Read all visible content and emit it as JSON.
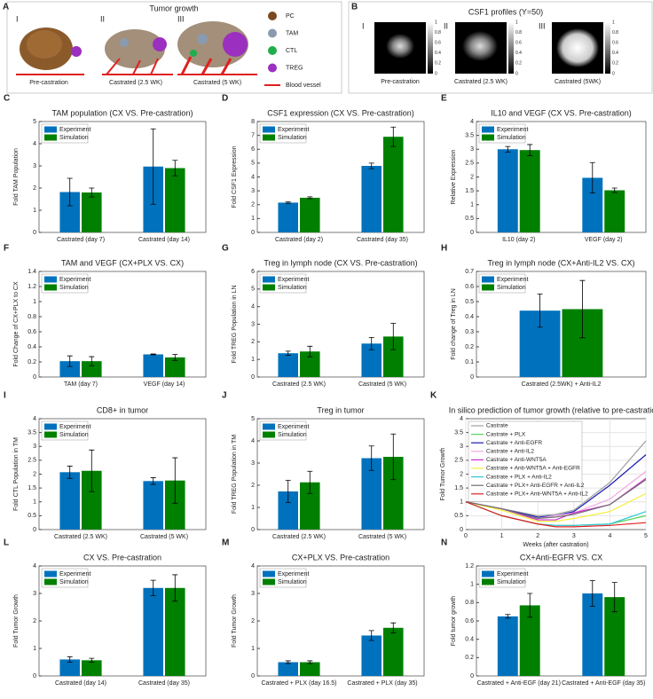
{
  "panel_a": {
    "letter": "A",
    "title": "Tumor growth",
    "image_labels": [
      "I",
      "II",
      "III"
    ],
    "captions": [
      "Pre-castration",
      "Castrated (2.5 WK)",
      "Castrated (5 WK)"
    ],
    "legend": [
      {
        "name": "PC",
        "color": "#7a4a1e"
      },
      {
        "name": "TAM",
        "color": "#8a9bb0"
      },
      {
        "name": "CTL",
        "color": "#1fae4b"
      },
      {
        "name": "TREG",
        "color": "#9b2fc0"
      },
      {
        "name": "Blood vessel",
        "color": "#e02020"
      }
    ]
  },
  "panel_b": {
    "letter": "B",
    "title": "CSF1 profiles (Y=50)",
    "image_labels": [
      "I",
      "II",
      "III"
    ],
    "captions": [
      "Pre-castration",
      "Castrated (2.5 WK)",
      "Castrated (5WK)"
    ],
    "colorbar_ticks": [
      0,
      0.2,
      0.4,
      0.6,
      0.8,
      1
    ]
  },
  "chart_data": [
    {
      "type": "bar",
      "letter": "C",
      "title": "TAM population (CX VS. Pre-castration)",
      "ylabel": "Fold TAM Population",
      "categories": [
        "Castrated (day 7)",
        "Castrated (day 14)"
      ],
      "series": [
        {
          "name": "Experiment",
          "color": "#0072bd",
          "values": [
            1.82,
            2.97
          ],
          "errors": [
            0.62,
            1.7
          ]
        },
        {
          "name": "Simulation",
          "color": "#008000",
          "values": [
            1.8,
            2.9
          ],
          "errors": [
            0.2,
            0.35
          ]
        }
      ],
      "ylim": [
        0,
        5
      ],
      "yticks": [
        0,
        1,
        2,
        3,
        4,
        5
      ]
    },
    {
      "type": "bar",
      "letter": "D",
      "title": "CSF1 expression (CX VS. Pre-castration)",
      "ylabel": "Fold CSF1 Expression",
      "categories": [
        "Castrated (day 2)",
        "Castrated (day 35)"
      ],
      "series": [
        {
          "name": "Experiment",
          "color": "#0072bd",
          "values": [
            2.15,
            4.8
          ],
          "errors": [
            0.05,
            0.2
          ]
        },
        {
          "name": "Simulation",
          "color": "#008000",
          "values": [
            2.5,
            6.9
          ],
          "errors": [
            0.07,
            0.7
          ]
        }
      ],
      "ylim": [
        0,
        8
      ],
      "yticks": [
        0,
        1,
        2,
        3,
        4,
        5,
        6,
        7,
        8
      ]
    },
    {
      "type": "bar",
      "letter": "E",
      "title": "IL10 and VEGF (CX VS. Pre-castration)",
      "ylabel": "Relative Expression",
      "categories": [
        "IL10 (day 2)",
        "VEGF (day 2)"
      ],
      "series": [
        {
          "name": "Experiment",
          "color": "#0072bd",
          "values": [
            3.0,
            1.97
          ],
          "errors": [
            0.1,
            0.55
          ]
        },
        {
          "name": "Simulation",
          "color": "#008000",
          "values": [
            2.97,
            1.52
          ],
          "errors": [
            0.2,
            0.08
          ]
        }
      ],
      "ylim": [
        0,
        4
      ],
      "yticks": [
        0,
        0.5,
        1,
        1.5,
        2,
        2.5,
        3,
        3.5,
        4
      ]
    },
    {
      "type": "bar",
      "letter": "F",
      "title": "TAM and VEGF (CX+PLX VS. CX)",
      "ylabel": "Fold Change of CX+PLX to CX",
      "categories": [
        "TAM (day 7)",
        "VEGF (day 14)"
      ],
      "series": [
        {
          "name": "Experiment",
          "color": "#0072bd",
          "values": [
            0.21,
            0.3
          ],
          "errors": [
            0.07,
            0.005
          ]
        },
        {
          "name": "Simulation",
          "color": "#008000",
          "values": [
            0.21,
            0.26
          ],
          "errors": [
            0.06,
            0.04
          ]
        }
      ],
      "ylim": [
        0,
        1.4
      ],
      "yticks": [
        0,
        0.2,
        0.4,
        0.6,
        0.8,
        1,
        1.2,
        1.4
      ]
    },
    {
      "type": "bar",
      "letter": "G",
      "title": "Treg in lymph node (CX VS. Pre-castration)",
      "ylabel": "Fold TREG Population in LN",
      "categories": [
        "Castrated (2.5 WK)",
        "Castrated (5 WK)"
      ],
      "series": [
        {
          "name": "Experiment",
          "color": "#0072bd",
          "values": [
            1.35,
            1.9
          ],
          "errors": [
            0.12,
            0.35
          ]
        },
        {
          "name": "Simulation",
          "color": "#008000",
          "values": [
            1.45,
            2.3
          ],
          "errors": [
            0.3,
            0.75
          ]
        }
      ],
      "ylim": [
        0,
        6
      ],
      "yticks": [
        0,
        1,
        2,
        3,
        4,
        5,
        6
      ]
    },
    {
      "type": "bar",
      "letter": "H",
      "title": "Treg in lymph node (CX+Anti-IL2 VS. CX)",
      "ylabel": "Fold change of Treg in LN",
      "categories": [
        "Castrated (2.5WK) + Anti-IL2"
      ],
      "series": [
        {
          "name": "Experiment",
          "color": "#0072bd",
          "values": [
            0.44
          ],
          "errors": [
            0.11
          ]
        },
        {
          "name": "Simulation",
          "color": "#008000",
          "values": [
            0.45
          ],
          "errors": [
            0.19
          ]
        }
      ],
      "ylim": [
        0,
        0.7
      ],
      "yticks": [
        0,
        0.1,
        0.2,
        0.3,
        0.4,
        0.5,
        0.6,
        0.7
      ]
    },
    {
      "type": "bar",
      "letter": "I",
      "title": "CD8+ in tumor",
      "ylabel": "Fold CTL Population in TM",
      "categories": [
        "Castrated (2.5 WK)",
        "Castrated (5 WK)"
      ],
      "series": [
        {
          "name": "Experiment",
          "color": "#0072bd",
          "values": [
            2.07,
            1.75
          ],
          "errors": [
            0.22,
            0.12
          ]
        },
        {
          "name": "Simulation",
          "color": "#008000",
          "values": [
            2.12,
            1.77
          ],
          "errors": [
            0.75,
            0.82
          ]
        }
      ],
      "ylim": [
        0,
        4
      ],
      "yticks": [
        0,
        0.5,
        1,
        1.5,
        2,
        2.5,
        3,
        3.5,
        4
      ]
    },
    {
      "type": "bar",
      "letter": "J",
      "title": "Treg in tumor",
      "ylabel": "Fold TREG Population in TM",
      "categories": [
        "Castrated (2.5 WK)",
        "Castrated (5 WK)"
      ],
      "series": [
        {
          "name": "Experiment",
          "color": "#0072bd",
          "values": [
            1.72,
            3.22
          ],
          "errors": [
            0.5,
            0.55
          ]
        },
        {
          "name": "Simulation",
          "color": "#008000",
          "values": [
            2.13,
            3.28
          ],
          "errors": [
            0.5,
            1.03
          ]
        }
      ],
      "ylim": [
        0,
        5
      ],
      "yticks": [
        0,
        1,
        2,
        3,
        4,
        5
      ]
    },
    {
      "type": "line",
      "letter": "K",
      "title": "In silico prediction of tumor growth (relative to pre-castration)",
      "xlabel": "Weeks (after castration)",
      "ylabel": "Fold Tumor Growth",
      "x": [
        0,
        1,
        2,
        2.5,
        3,
        4,
        5
      ],
      "series": [
        {
          "name": "Castrate",
          "color": "#a0a0a0",
          "values": [
            1,
            0.75,
            0.5,
            0.55,
            0.7,
            1.7,
            3.2
          ]
        },
        {
          "name": "Castrate + PLX",
          "color": "#5ad45a",
          "values": [
            1,
            0.5,
            0.2,
            0.15,
            0.15,
            0.2,
            0.5
          ]
        },
        {
          "name": "Castrate + Anti-EGFR",
          "color": "#1a1ab0",
          "values": [
            1,
            0.75,
            0.45,
            0.5,
            0.65,
            1.6,
            2.7
          ]
        },
        {
          "name": "Castrate + Anti-IL2",
          "color": "#f0a8e0",
          "values": [
            1,
            0.75,
            0.4,
            0.5,
            0.6,
            1.1,
            2.1
          ]
        },
        {
          "name": "Castrate + Anti-WNT5A",
          "color": "#d02ad0",
          "values": [
            1,
            0.75,
            0.35,
            0.35,
            0.6,
            0.9,
            1.85
          ]
        },
        {
          "name": "Castrate + Anti-WNT5A + Anti-EGFR",
          "color": "#f5f03a",
          "values": [
            1,
            0.7,
            0.3,
            0.3,
            0.4,
            0.65,
            1.3
          ]
        },
        {
          "name": "Castrate + PLX + Anti-IL2",
          "color": "#30c8d8",
          "values": [
            1,
            0.5,
            0.2,
            0.15,
            0.15,
            0.2,
            0.65
          ]
        },
        {
          "name": "Castrate + PLX+ Anti-EGFR + Anti-IL2",
          "color": "#707070",
          "values": [
            1,
            0.75,
            0.4,
            0.45,
            0.55,
            0.9,
            1.8
          ]
        },
        {
          "name": "Castrate + PLX+ Anti-WNT5A + Anti-IL2",
          "color": "#e02020",
          "values": [
            1,
            0.5,
            0.2,
            0.1,
            0.1,
            0.15,
            0.25
          ]
        }
      ],
      "xlim": [
        0,
        5
      ],
      "xticks": [
        0,
        1,
        2,
        3,
        4,
        5
      ],
      "ylim": [
        0,
        4
      ],
      "yticks": [
        0,
        0.5,
        1,
        1.5,
        2,
        2.5,
        3,
        3.5,
        4
      ],
      "grid": true
    },
    {
      "type": "bar",
      "letter": "L",
      "title": "CX VS. Pre-castration",
      "ylabel": "Fold Tumor Growth",
      "categories": [
        "Castrated (day 14)",
        "Castrated (day 35)"
      ],
      "series": [
        {
          "name": "Experiment",
          "color": "#0072bd",
          "values": [
            0.6,
            3.2
          ],
          "errors": [
            0.1,
            0.28
          ]
        },
        {
          "name": "Simulation",
          "color": "#008000",
          "values": [
            0.57,
            3.2
          ],
          "errors": [
            0.07,
            0.48
          ]
        }
      ],
      "ylim": [
        0,
        4
      ],
      "yticks": [
        0,
        1,
        2,
        3,
        4
      ]
    },
    {
      "type": "bar",
      "letter": "M",
      "title": "CX+PLX VS. Pre-castration",
      "ylabel": "Fold Tumor Growth",
      "categories": [
        "Castrated + PLX (day 16.5)",
        "Castrated + PLX (day 35)"
      ],
      "series": [
        {
          "name": "Experiment",
          "color": "#0072bd",
          "values": [
            0.5,
            1.47
          ],
          "errors": [
            0.05,
            0.18
          ]
        },
        {
          "name": "Simulation",
          "color": "#008000",
          "values": [
            0.5,
            1.75
          ],
          "errors": [
            0.05,
            0.18
          ]
        }
      ],
      "ylim": [
        0,
        4
      ],
      "yticks": [
        0,
        1,
        2,
        3,
        4
      ]
    },
    {
      "type": "bar",
      "letter": "N",
      "title": "CX+Anti-EGFR VS. CX",
      "ylabel": "Fold tumor growth",
      "categories": [
        "Castrated + Anti-EGF (day 21)",
        "Castrated + Anti-EGF (day 35)"
      ],
      "series": [
        {
          "name": "Experiment",
          "color": "#0072bd",
          "values": [
            0.65,
            0.9
          ],
          "errors": [
            0.02,
            0.14
          ]
        },
        {
          "name": "Simulation",
          "color": "#008000",
          "values": [
            0.77,
            0.86
          ],
          "errors": [
            0.13,
            0.16
          ]
        }
      ],
      "ylim": [
        0,
        1.2
      ],
      "yticks": [
        0,
        0.2,
        0.4,
        0.6,
        0.8,
        1,
        1.2
      ]
    }
  ]
}
